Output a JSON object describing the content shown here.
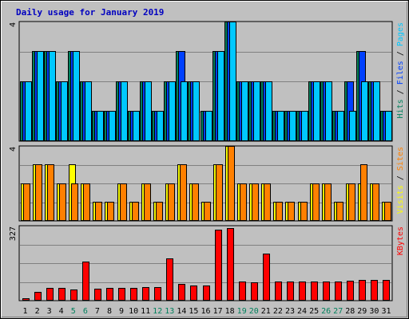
{
  "chart_data": {
    "type": "bar",
    "title": "Daily usage for January 2019",
    "colors": {
      "title": "#0000c0",
      "background": "#c0c0c0",
      "hits": "#00805c",
      "files": "#0040ff",
      "pages": "#00c8ff",
      "visits": "#ffff00",
      "sites": "#ff8000",
      "kbytes": "#ff0000",
      "day": "#000000",
      "weekend_day": "#00805c"
    },
    "days": [
      "1",
      "2",
      "3",
      "4",
      "5",
      "6",
      "7",
      "8",
      "9",
      "10",
      "11",
      "12",
      "13",
      "14",
      "15",
      "16",
      "17",
      "18",
      "19",
      "20",
      "21",
      "22",
      "23",
      "24",
      "25",
      "26",
      "27",
      "28",
      "29",
      "30",
      "31"
    ],
    "weekend_days": [
      "5",
      "6",
      "12",
      "13",
      "19",
      "20",
      "26",
      "27"
    ],
    "panels": [
      {
        "name": "hits-files-pages",
        "max_label": "4",
        "ymax": 4,
        "legend": [
          {
            "text": "Hits",
            "color": "#00805c"
          },
          {
            "text": "Files",
            "color": "#0040ff"
          },
          {
            "text": "Pages",
            "color": "#00c8ff"
          }
        ],
        "series": [
          {
            "name": "Hits",
            "values": [
              2,
              3,
              3,
              2,
              3,
              2,
              1,
              1,
              2,
              1,
              2,
              1,
              2,
              3,
              2,
              1,
              3,
              4,
              2,
              2,
              2,
              1,
              1,
              1,
              2,
              2,
              1,
              2,
              3,
              2,
              1
            ]
          },
          {
            "name": "Files",
            "values": [
              2,
              3,
              3,
              2,
              3,
              2,
              1,
              1,
              2,
              1,
              2,
              1,
              2,
              3,
              2,
              1,
              3,
              4,
              2,
              2,
              2,
              1,
              1,
              1,
              2,
              2,
              1,
              2,
              3,
              2,
              1
            ]
          },
          {
            "name": "Pages",
            "values": [
              2,
              3,
              3,
              2,
              3,
              2,
              1,
              1,
              2,
              1,
              2,
              1,
              2,
              2,
              2,
              1,
              3,
              4,
              2,
              2,
              2,
              1,
              1,
              1,
              2,
              2,
              1,
              1,
              2,
              2,
              1
            ]
          }
        ]
      },
      {
        "name": "visits-sites",
        "max_label": "4",
        "ymax": 4,
        "legend": [
          {
            "text": "Visits",
            "color": "#ffff00"
          },
          {
            "text": "Sites",
            "color": "#ff8000"
          }
        ],
        "series": [
          {
            "name": "Visits",
            "values": [
              2,
              3,
              3,
              2,
              3,
              2,
              1,
              1,
              2,
              1,
              2,
              1,
              2,
              3,
              2,
              1,
              3,
              4,
              2,
              2,
              2,
              1,
              1,
              1,
              2,
              2,
              1,
              2,
              2,
              2,
              1
            ]
          },
          {
            "name": "Sites",
            "values": [
              2,
              3,
              3,
              2,
              2,
              2,
              1,
              1,
              2,
              1,
              2,
              1,
              2,
              3,
              2,
              1,
              3,
              4,
              2,
              2,
              2,
              1,
              1,
              1,
              2,
              2,
              1,
              2,
              3,
              2,
              1
            ]
          }
        ]
      },
      {
        "name": "kbytes",
        "max_label": "327",
        "ymax": 327,
        "legend": [
          {
            "text": "KBytes",
            "color": "#ff0000"
          }
        ],
        "series": [
          {
            "name": "KBytes",
            "values": [
              10,
              40,
              55,
              55,
              50,
              170,
              52,
              55,
              55,
              55,
              58,
              60,
              185,
              72,
              65,
              65,
              310,
              315,
              85,
              80,
              205,
              82,
              85,
              85,
              85,
              85,
              85,
              88,
              92,
              92,
              90
            ]
          }
        ]
      }
    ]
  }
}
